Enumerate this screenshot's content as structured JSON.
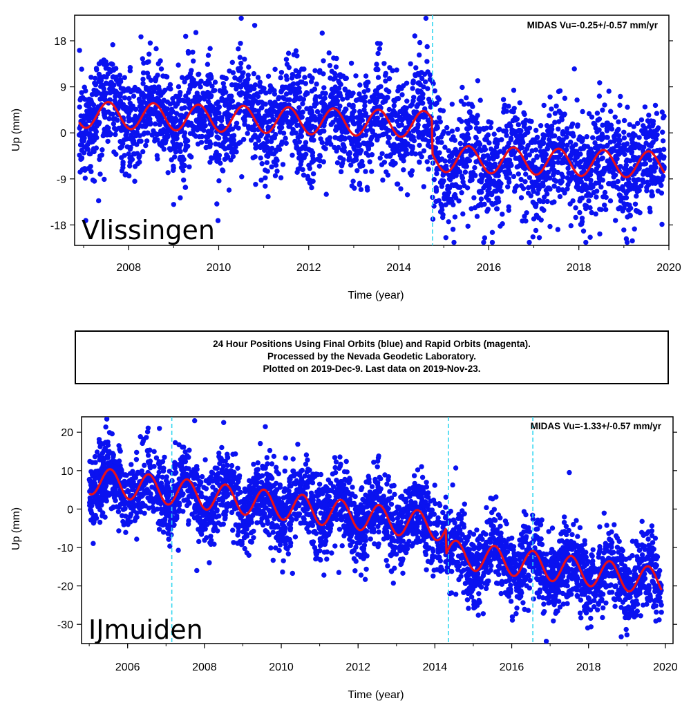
{
  "caption_box": {
    "line1": "24 Hour Positions Using Final Orbits (blue) and Rapid Orbits (magenta).",
    "line2": "Processed by the Nevada Geodetic Laboratory.",
    "line3": "Plotted on 2019-Dec-9. Last data on 2019-Nov-23."
  },
  "colors": {
    "points": "#0a12f0",
    "fit": "#e8101a",
    "breaks": "#33d6f0",
    "axis": "#000000"
  },
  "chart_data": [
    {
      "type": "scatter",
      "station_label": "Vlissingen",
      "annotation": "MIDAS Vu=-0.25+/-0.57 mm/yr",
      "xlabel": "Time (year)",
      "ylabel": "Up (mm)",
      "xlim": [
        2006.8,
        2020.0
      ],
      "ylim": [
        -22,
        23
      ],
      "xticks": [
        2008,
        2010,
        2012,
        2014,
        2016,
        2018,
        2020
      ],
      "yticks": [
        18,
        9,
        0,
        -9,
        -18
      ],
      "grid": false,
      "series": [
        {
          "name": "Final Orbits (blue)",
          "kind": "daily-positions",
          "x_range": [
            2006.9,
            2019.9
          ],
          "segments": [
            {
              "from": 2006.9,
              "to": 2014.75,
              "mean": 3.2,
              "trend_mm_yr": -0.3,
              "scatter_sd": 6
            }
          ],
          "step_segments": [
            {
              "from": 2006.9,
              "to": 2014.75,
              "offset": 3.8
            },
            {
              "from": 2014.75,
              "to": 2019.9,
              "offset": -5.2
            }
          ],
          "outliers": [
            [
              2010.5,
              22.5
            ],
            [
              2010.8,
              21
            ],
            [
              2012.3,
              19.5
            ],
            [
              2017.9,
              12.5
            ],
            [
              2016.9,
              -21.5
            ],
            [
              2009.0,
              -14
            ],
            [
              2019.0,
              -19
            ]
          ]
        },
        {
          "name": "Model fit",
          "kind": "annual-sinusoid",
          "amplitude": 2.6,
          "phase_peak": 0.55,
          "trend_mm_yr": -0.25,
          "pieces": [
            {
              "from": 2006.9,
              "to": 2014.75,
              "offset_at_start": 3.6
            },
            {
              "from": 2014.75,
              "to": 2019.9,
              "offset_at_start": -5.0
            }
          ]
        }
      ],
      "breaks": [
        2014.75
      ]
    },
    {
      "type": "scatter",
      "station_label": "IJmuiden",
      "annotation": "MIDAS Vu=-1.33+/-0.57 mm/yr",
      "xlabel": "Time (year)",
      "ylabel": "Up (mm)",
      "xlim": [
        2004.8,
        2020.2
      ],
      "ylim": [
        -35,
        24
      ],
      "xticks": [
        2006,
        2008,
        2010,
        2012,
        2014,
        2016,
        2018,
        2020
      ],
      "yticks": [
        20,
        10,
        0,
        -10,
        -20,
        -30
      ],
      "grid": false,
      "series": [
        {
          "name": "Final Orbits (blue)",
          "kind": "daily-positions",
          "x_range": [
            2005.0,
            2019.9
          ],
          "step_segments": [
            {
              "from": 2005.0,
              "to": 2014.3,
              "offset": 9.5
            },
            {
              "from": 2014.3,
              "to": 2019.9,
              "offset": -4.5
            }
          ],
          "outliers": [
            [
              2008.5,
              22.5
            ],
            [
              2007.8,
              -16
            ],
            [
              2011.5,
              -16.5
            ],
            [
              2016.9,
              -34.5
            ],
            [
              2017.5,
              9.5
            ]
          ]
        },
        {
          "name": "Model fit",
          "kind": "annual-sinusoid",
          "amplitude": 3.6,
          "phase_peak": 0.55,
          "trend_mm_yr": -1.33,
          "pieces": [
            {
              "from": 2005.0,
              "to": 2014.3,
              "offset_at_start": 7.5
            },
            {
              "from": 2014.3,
              "to": 2019.9,
              "offset_at_start": -11.5
            }
          ]
        }
      ],
      "breaks": [
        2007.15,
        2014.35,
        2016.55
      ]
    }
  ]
}
